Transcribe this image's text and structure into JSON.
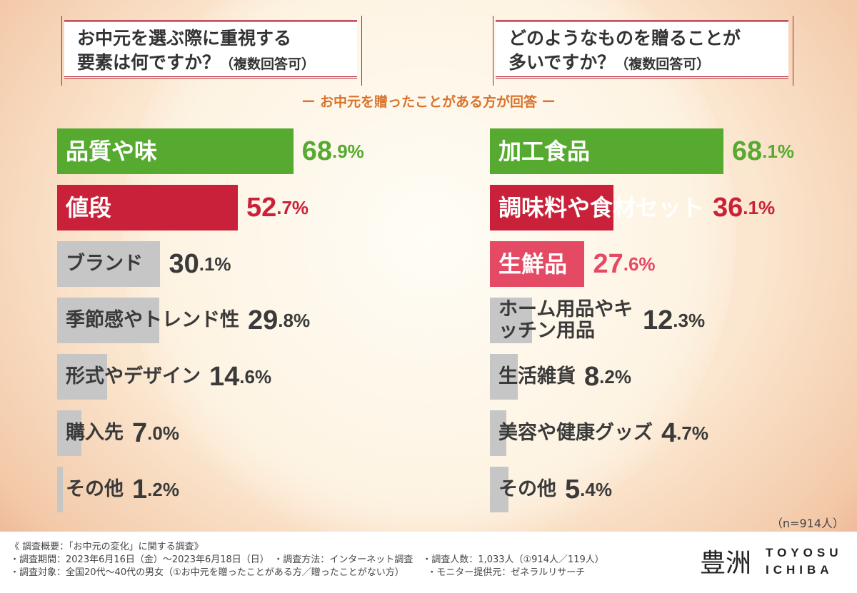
{
  "chart_data": [
    {
      "type": "bar",
      "title": "お中元を選ぶ際に重視する要素は何ですか？（複数回答可）",
      "unit": "%",
      "categories": [
        "品質や味",
        "値段",
        "ブランド",
        "季節感やトレンド性",
        "形式やデザイン",
        "購入先",
        "その他"
      ],
      "values": [
        68.9,
        52.7,
        30.1,
        29.8,
        14.6,
        7.0,
        1.2
      ],
      "colors": [
        "#56aa2f",
        "#c9213a",
        "#c6c6c6",
        "#c6c6c6",
        "#c6c6c6",
        "#c6c6c6",
        "#c6c6c6"
      ]
    },
    {
      "type": "bar",
      "title": "どのようなものを贈ることが多いですか？（複数回答可）",
      "unit": "%",
      "categories": [
        "加工食品",
        "調味料や食材セット",
        "生鮮品",
        "ホーム用品やキッチン用品",
        "生活雑貨",
        "美容や健康グッズ",
        "その他"
      ],
      "values": [
        68.1,
        36.1,
        27.6,
        12.3,
        8.2,
        4.7,
        5.4
      ],
      "colors": [
        "#56aa2f",
        "#c9213a",
        "#e44a64",
        "#c6c6c6",
        "#c6c6c6",
        "#c6c6c6",
        "#c6c6c6"
      ]
    }
  ],
  "questions": {
    "left_line1": "お中元を選ぶ際に重視する",
    "left_line2": "要素は何ですか？",
    "left_suffix": "（複数回答可）",
    "right_line1": "どのようなものを贈ることが",
    "right_line2": "多いですか？",
    "right_suffix": "（複数回答可）"
  },
  "subtitle": "ー お中元を贈ったことがある方が回答 ー",
  "n_note": "（n=914人）",
  "footer": {
    "line1": "《 調査概要：「お中元の変化」に関する調査》",
    "line2": "・調査期間：2023年6月16日（金）～2023年6月18日（日）　・調査方法：インターネット調査　・調査人数：1,033人（①914人／119人）",
    "line3": "・調査対象：全国20代～40代の男女（①お中元を贈ったことがある方／贈ったことがない方）　　　・モニター提供元：ゼネラルリサーチ"
  },
  "logo": {
    "kanji": "豊洲",
    "text1": "TOYOSU",
    "text2": "ICHIBA"
  }
}
